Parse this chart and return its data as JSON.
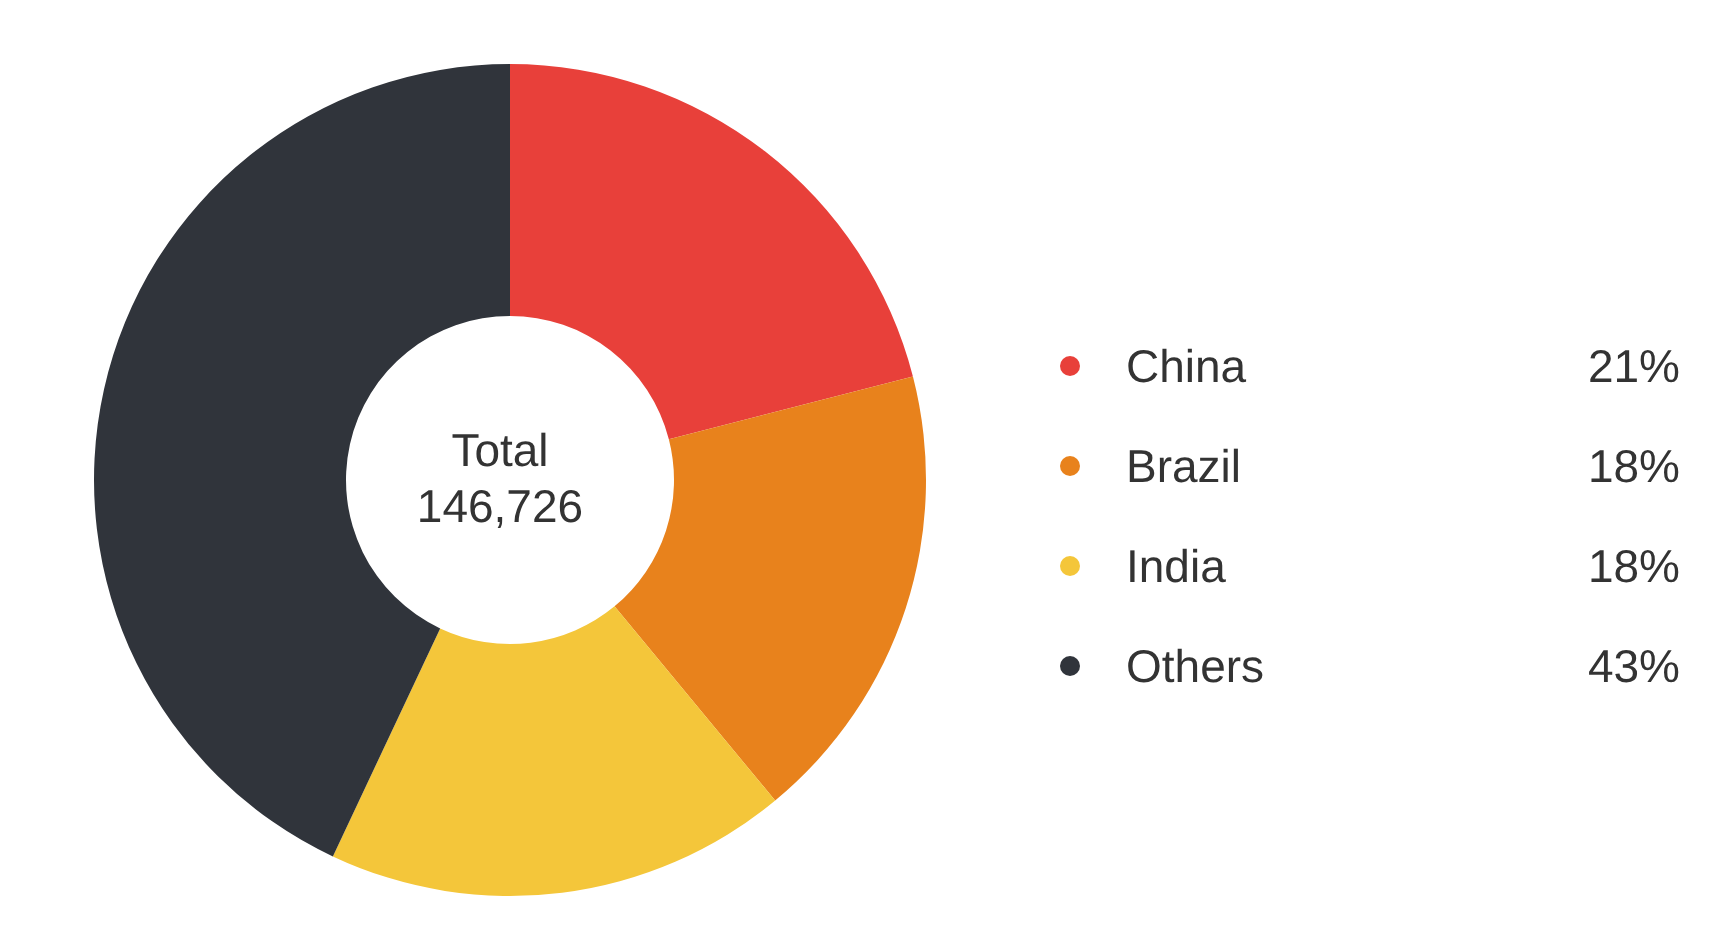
{
  "chart_data": {
    "type": "donut",
    "title": "Total",
    "subtitle": "146,726",
    "categories": [
      "China",
      "Brazil",
      "India",
      "Others"
    ],
    "values": [
      21,
      18,
      18,
      43
    ],
    "colors": [
      "#e8403a",
      "#e8821c",
      "#f4c63a",
      "#30343b"
    ],
    "value_labels": [
      "21%",
      "18%",
      "18%",
      "43%"
    ],
    "legend": "right"
  }
}
